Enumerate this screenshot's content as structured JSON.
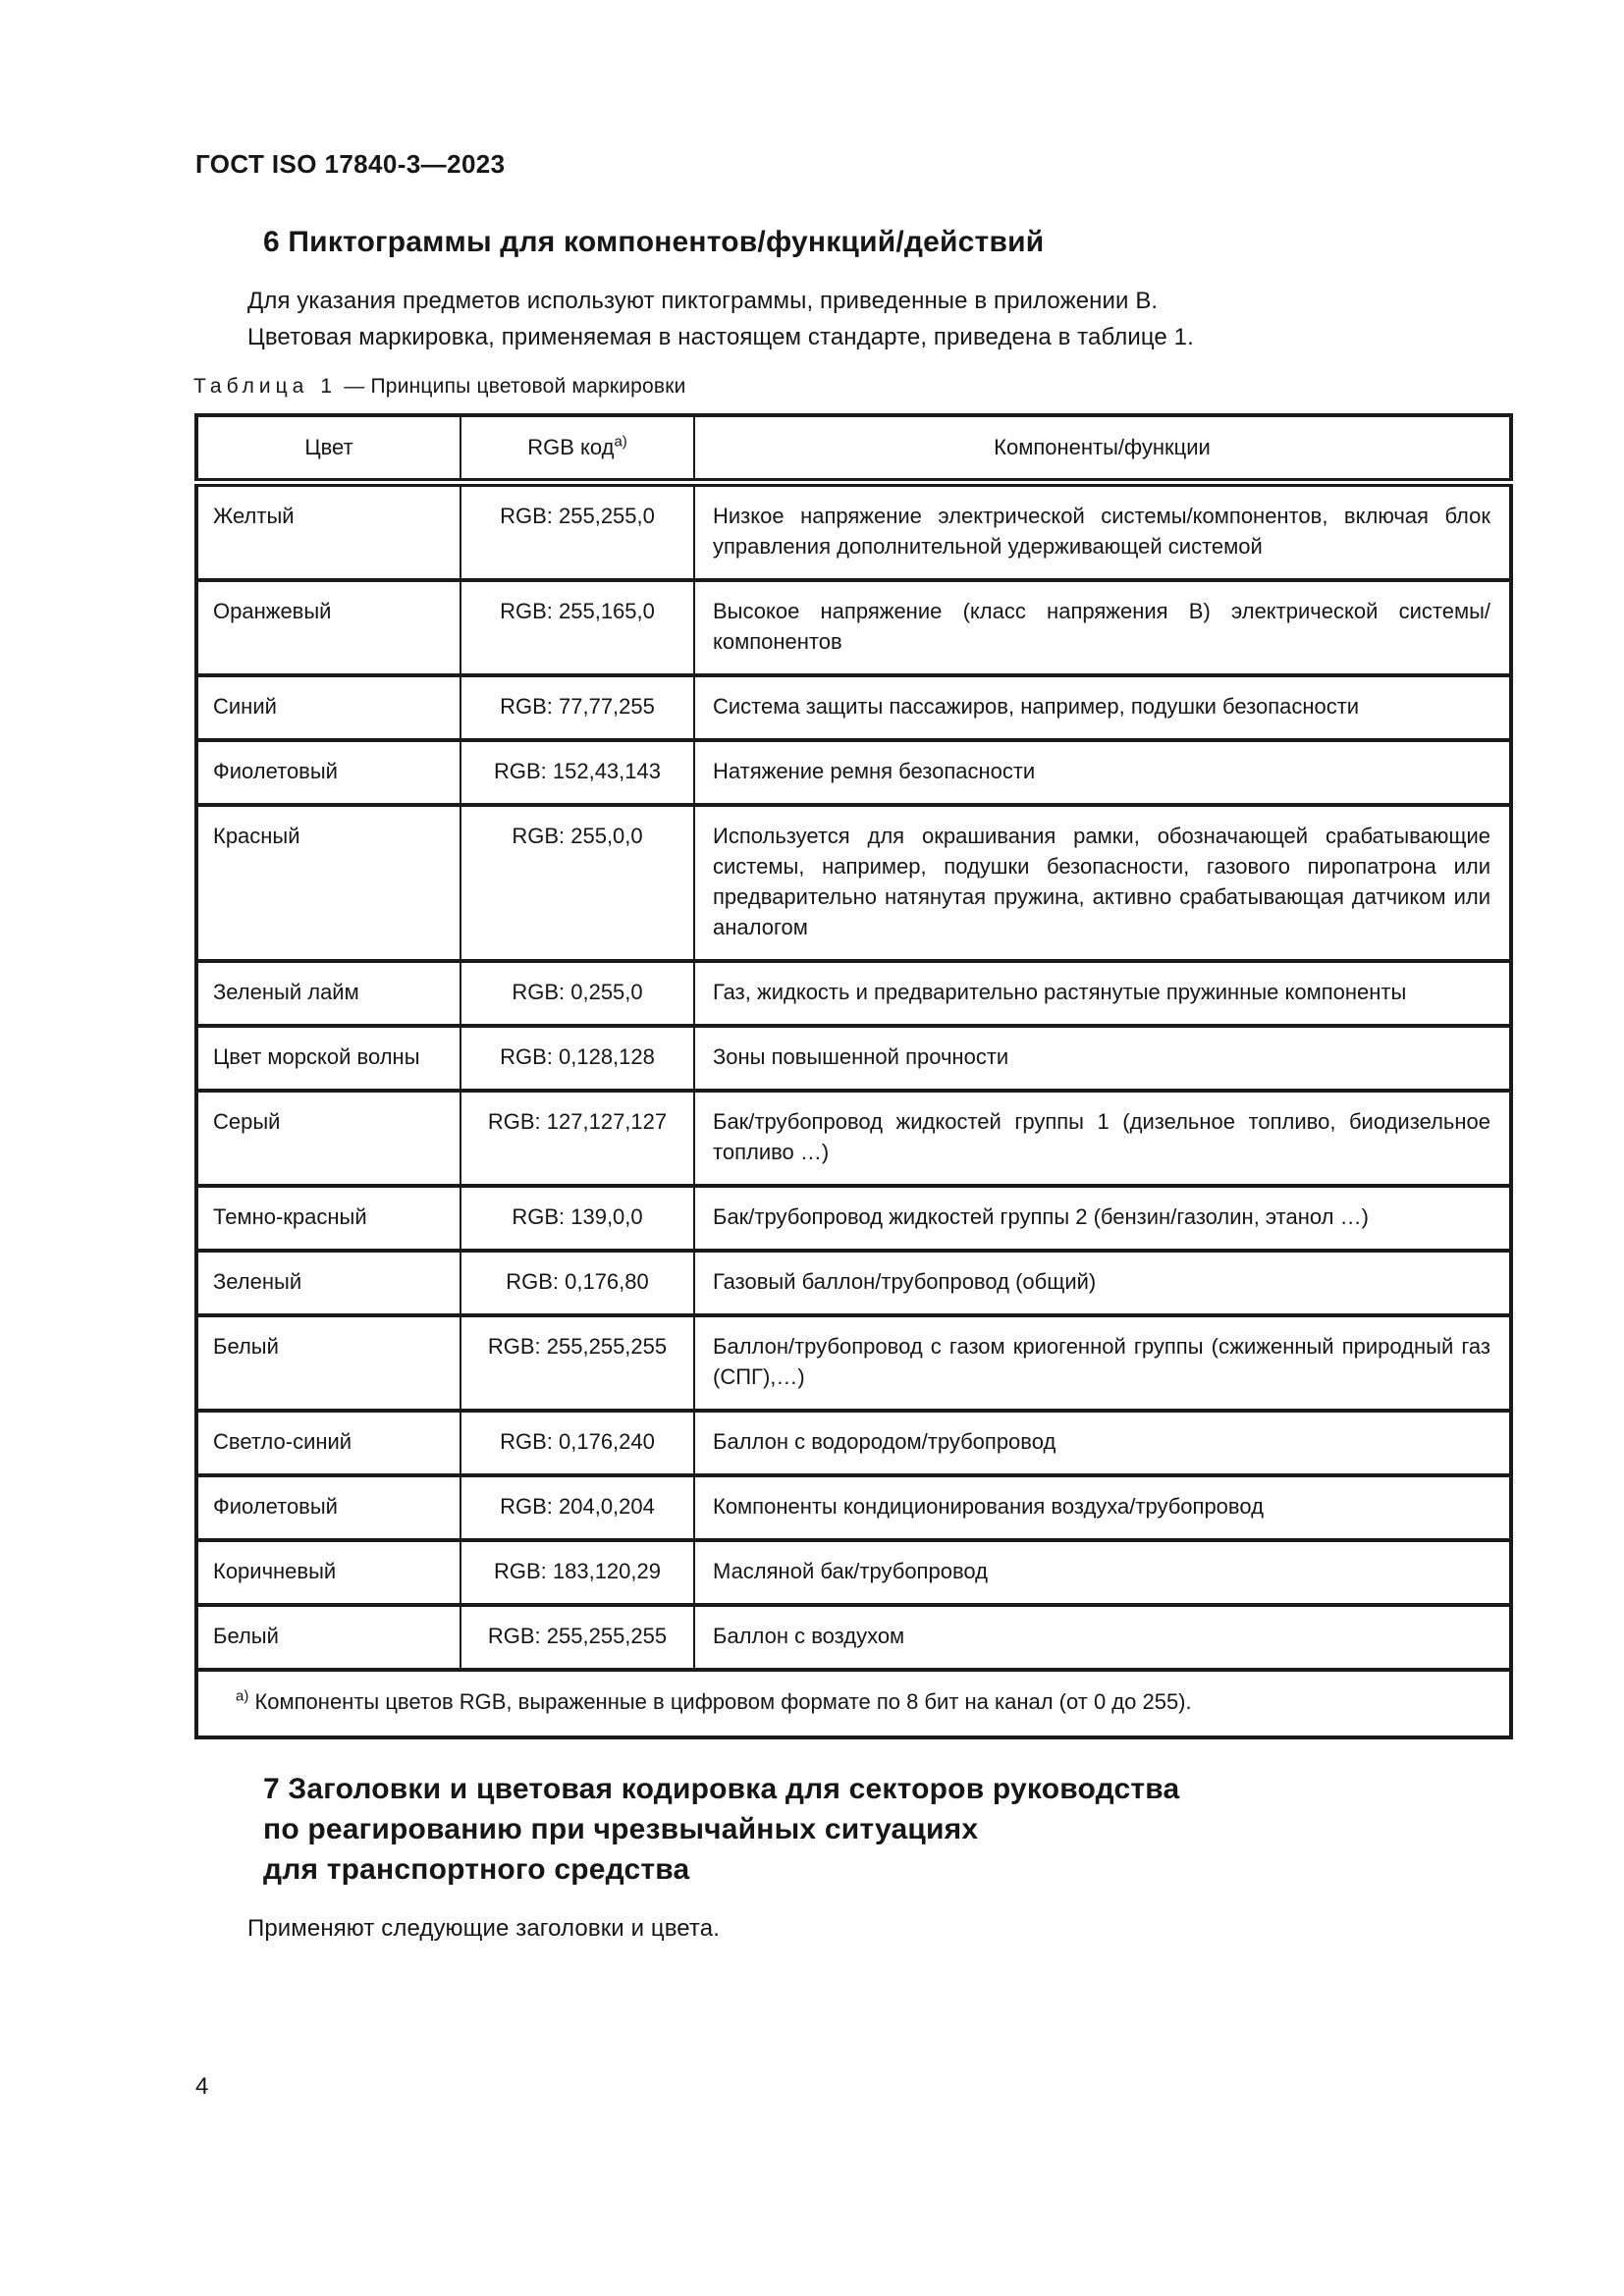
{
  "page": {
    "header": "ГОСТ ISO 17840-3—2023",
    "page_number": "4"
  },
  "section6": {
    "title": "6  Пиктограммы для компонентов/функций/действий",
    "para1": "Для указания предметов используют пиктограммы, приведенные в приложении В.",
    "para2": "Цветовая маркировка, применяемая в настоящем стандарте, приведена в таблице 1."
  },
  "table": {
    "caption_word": "Таблица",
    "caption_number": "1",
    "caption_rest": "— Принципы цветовой маркировки",
    "headers": [
      "Цвет",
      "RGB код",
      "Компоненты/функции"
    ],
    "header_sup": "а)",
    "rows": [
      {
        "color": "Желтый",
        "rgb": "RGB: 255,255,0",
        "desc": "Низкое напряжение электрической системы/компонентов, включая блок управления дополнительной удерживающей системой"
      },
      {
        "color": "Оранжевый",
        "rgb": "RGB: 255,165,0",
        "desc": "Высокое напряжение (класс напряжения В) электрической системы/ компонентов"
      },
      {
        "color": "Синий",
        "rgb": "RGB: 77,77,255",
        "desc": "Система защиты пассажиров, например, подушки безопасности"
      },
      {
        "color": "Фиолетовый",
        "rgb": "RGB: 152,43,143",
        "desc": "Натяжение ремня безопасности"
      },
      {
        "color": "Красный",
        "rgb": "RGB: 255,0,0",
        "desc": "Используется для окрашивания рамки, обозначающей срабатывающие системы, например, подушки безопасности, газового пиропатрона или предварительно натянутая пружина, активно срабатывающая датчиком или аналогом"
      },
      {
        "color": "Зеленый лайм",
        "rgb": "RGB: 0,255,0",
        "desc": "Газ, жидкость и предварительно растянутые пружинные компоненты"
      },
      {
        "color": "Цвет морской волны",
        "rgb": "RGB: 0,128,128",
        "desc": "Зоны повышенной прочности"
      },
      {
        "color": "Серый",
        "rgb": "RGB: 127,127,127",
        "desc": "Бак/трубопровод жидкостей группы 1 (дизельное топливо, биодизельное топливо …)"
      },
      {
        "color": "Темно-красный",
        "rgb": "RGB: 139,0,0",
        "desc": "Бак/трубопровод жидкостей группы 2 (бензин/газолин, этанол …)"
      },
      {
        "color": "Зеленый",
        "rgb": "RGB: 0,176,80",
        "desc": "Газовый баллон/трубопровод (общий)"
      },
      {
        "color": "Белый",
        "rgb": "RGB: 255,255,255",
        "desc": "Баллон/трубопровод с газом криогенной группы (сжиженный природный газ (СПГ),…)"
      },
      {
        "color": "Светло-синий",
        "rgb": "RGB: 0,176,240",
        "desc": "Баллон с водородом/трубопровод"
      },
      {
        "color": "Фиолетовый",
        "rgb": "RGB: 204,0,204",
        "desc": "Компоненты кондиционирования воздуха/трубопровод"
      },
      {
        "color": "Коричневый",
        "rgb": "RGB: 183,120,29",
        "desc": "Масляной бак/трубопровод"
      },
      {
        "color": "Белый",
        "rgb": "RGB: 255,255,255",
        "desc": "Баллон с воздухом"
      }
    ],
    "footnote_sup": "а)",
    "footnote": "Компоненты цветов RGB, выраженные в цифровом формате по 8 бит на канал (от 0 до 255)."
  },
  "section7": {
    "title_line1": "7  Заголовки и цветовая кодировка для секторов руководства",
    "title_line2": "по реагированию при чрезвычайных ситуациях",
    "title_line3": "для транспортного средства",
    "para": "Применяют следующие заголовки и цвета."
  }
}
